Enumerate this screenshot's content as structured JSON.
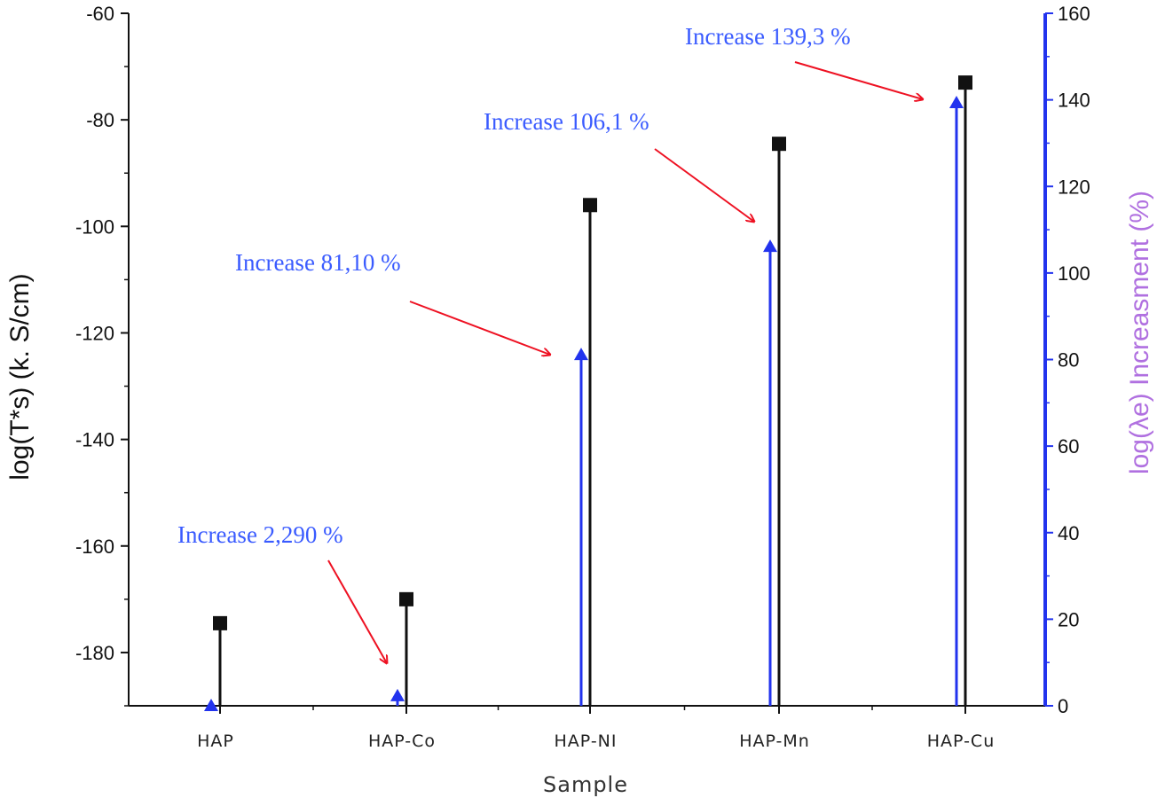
{
  "chart_data": {
    "type": "scatter",
    "xlabel": "Sample",
    "ylabel_left": "log(T*s) (k. S/cm)",
    "ylabel_right": "log(λe) Increasment (%)",
    "categories": [
      "HAP",
      "HAP-Co",
      "HAP-NI",
      "HAP-Mn",
      "HAP-Cu"
    ],
    "ylim_left": [
      -190,
      -60
    ],
    "yticks_left": [
      -60,
      -80,
      -100,
      -120,
      -140,
      -160,
      -180
    ],
    "ylim_right": [
      0,
      160
    ],
    "yticks_right": [
      0,
      20,
      40,
      60,
      80,
      100,
      120,
      140,
      160
    ],
    "series": [
      {
        "axis": "left",
        "color": "#111111",
        "marker": "square",
        "drop_lines": true,
        "values": [
          -174.5,
          -170,
          -96,
          -84.5,
          -73
        ]
      },
      {
        "axis": "right",
        "color": "#2233ee",
        "marker": "triangle",
        "drop_lines": true,
        "values": [
          0,
          2.29,
          81.1,
          106.1,
          139.3
        ]
      }
    ],
    "annotations": [
      {
        "text": "Increase 2,290 %",
        "target": "HAP-Co"
      },
      {
        "text": "Increase 81,10 %",
        "target": "HAP-NI"
      },
      {
        "text": "Increase 106,1 %",
        "target": "HAP-Mn"
      },
      {
        "text": "Increase 139,3 %",
        "target": "HAP-Cu"
      }
    ],
    "annotation_colors": {
      "text": "#3a5bff",
      "arrow": "#ee1122"
    },
    "left_axis_color": "#111111",
    "right_axis_color": "#2233ee",
    "grid": false
  }
}
